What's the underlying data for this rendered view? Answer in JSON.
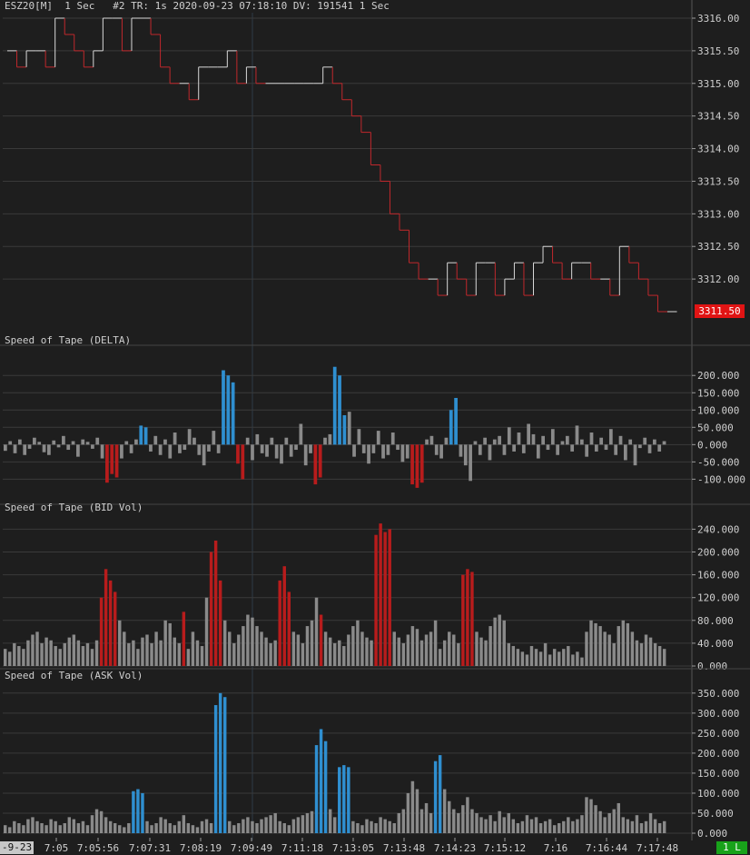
{
  "header": {
    "symbol": "ESZ20[M]",
    "period": "1 Sec",
    "info": "#2 TR: 1s 2020-09-23 07:18:10 DV: 191541 1 Sec"
  },
  "time_axis": {
    "date_label": "-9-23",
    "labels": [
      "7:05",
      "7:05:56",
      "7:07:31",
      "7:08:19",
      "7:09:49",
      "7:11:18",
      "7:13:05",
      "7:13:48",
      "7:14:23",
      "7:15:12",
      "7:16",
      "7:16:44",
      "7:17:48"
    ],
    "live_label": "1 L"
  },
  "colors": {
    "down": "#c0282c",
    "up": "#d8d8d8",
    "gray": "#8a8a8a",
    "red": "#b81c1c",
    "blue": "#2f8fd0",
    "bg": "#1e1e1e",
    "grid": "#3a3a3a"
  },
  "chart_data": [
    {
      "type": "line",
      "name": "price",
      "ylim": [
        3311.5,
        3316.0
      ],
      "y_ticks": [
        "3316.00",
        "3315.50",
        "3315.00",
        "3314.50",
        "3314.00",
        "3313.50",
        "3313.00",
        "3312.50",
        "3312.00"
      ],
      "last_price_label": "3311.50",
      "values": [
        3315.5,
        3315.25,
        3315.5,
        3315.5,
        3315.25,
        3316.0,
        3315.75,
        3315.5,
        3315.25,
        3315.5,
        3316.0,
        3316.0,
        3315.5,
        3316.0,
        3316.0,
        3315.75,
        3315.25,
        3315.0,
        3315.0,
        3314.75,
        3315.25,
        3315.25,
        3315.25,
        3315.5,
        3315.0,
        3315.25,
        3315.0,
        3315.0,
        3315.0,
        3315.0,
        3315.0,
        3315.0,
        3315.0,
        3315.25,
        3315.0,
        3314.75,
        3314.5,
        3314.25,
        3313.75,
        3313.5,
        3313.0,
        3312.75,
        3312.25,
        3312.0,
        3312.0,
        3311.75,
        3312.25,
        3312.0,
        3311.75,
        3312.25,
        3312.25,
        3311.75,
        3312.0,
        3312.25,
        3311.75,
        3312.25,
        3312.5,
        3312.25,
        3312.0,
        3312.25,
        3312.25,
        3312.0,
        3312.0,
        3311.75,
        3312.5,
        3312.25,
        3312.0,
        3311.75,
        3311.5,
        3311.5
      ]
    },
    {
      "type": "bar",
      "name": "Speed of Tape (DELTA)",
      "ylim": [
        -120,
        240
      ],
      "y_ticks": [
        "200.000",
        "150.000",
        "100.000",
        "50.000",
        "0.000",
        "-50.000",
        "-100.000"
      ],
      "tick_values": [
        200,
        150,
        100,
        50,
        0,
        -50,
        -100
      ],
      "values": [
        -18,
        10,
        -25,
        15,
        -30,
        -12,
        20,
        8,
        -22,
        -30,
        12,
        -8,
        25,
        -15,
        10,
        -35,
        15,
        8,
        -12,
        20,
        -40,
        -110,
        -85,
        -95,
        -40,
        10,
        -25,
        15,
        55,
        50,
        -20,
        25,
        -30,
        15,
        -40,
        35,
        -25,
        -15,
        45,
        20,
        -30,
        -60,
        -20,
        40,
        -25,
        215,
        200,
        180,
        -55,
        -100,
        20,
        -45,
        30,
        -25,
        -35,
        20,
        -40,
        -55,
        20,
        -35,
        -15,
        60,
        -60,
        -25,
        -115,
        -95,
        20,
        30,
        225,
        200,
        85,
        95,
        -35,
        45,
        -25,
        -55,
        -25,
        40,
        -40,
        -30,
        35,
        -15,
        -50,
        -40,
        -115,
        -125,
        -110,
        15,
        25,
        -30,
        -40,
        20,
        100,
        135,
        -35,
        -60,
        -105,
        10,
        -30,
        20,
        -45,
        15,
        25,
        -30,
        50,
        -20,
        35,
        -25,
        60,
        30,
        -40,
        25,
        -15,
        45,
        -30,
        10,
        25,
        -20,
        55,
        15,
        -35,
        35,
        -20,
        20,
        -15,
        45,
        -30,
        25,
        -45,
        15,
        -60,
        -10,
        20,
        -25,
        15,
        -20,
        10
      ],
      "red_indices": [
        21,
        22,
        23,
        48,
        49,
        64,
        65,
        84,
        85,
        86
      ],
      "blue_indices": [
        28,
        29,
        45,
        46,
        47,
        68,
        69,
        70,
        92,
        93
      ]
    },
    {
      "type": "bar",
      "name": "Speed of Tape (BID Vol)",
      "ylim": [
        0,
        255
      ],
      "y_ticks": [
        "240.000",
        "200.000",
        "160.000",
        "120.000",
        "80.000",
        "40.000",
        "0.000"
      ],
      "tick_values": [
        240,
        200,
        160,
        120,
        80,
        40,
        0
      ],
      "values": [
        30,
        25,
        40,
        35,
        30,
        45,
        55,
        60,
        40,
        50,
        45,
        35,
        30,
        40,
        50,
        55,
        45,
        35,
        40,
        30,
        45,
        120,
        170,
        150,
        130,
        80,
        60,
        40,
        45,
        30,
        50,
        55,
        40,
        60,
        45,
        80,
        75,
        50,
        40,
        95,
        30,
        60,
        45,
        35,
        120,
        200,
        220,
        150,
        80,
        60,
        40,
        55,
        70,
        90,
        85,
        70,
        60,
        50,
        40,
        45,
        150,
        175,
        130,
        60,
        55,
        40,
        70,
        80,
        120,
        90,
        60,
        50,
        40,
        45,
        35,
        55,
        70,
        80,
        60,
        50,
        45,
        230,
        250,
        235,
        240,
        60,
        50,
        40,
        55,
        70,
        65,
        45,
        55,
        60,
        80,
        30,
        45,
        60,
        55,
        40,
        160,
        170,
        165,
        60,
        50,
        45,
        70,
        85,
        90,
        80,
        40,
        35,
        30,
        25,
        20,
        35,
        30,
        25,
        40,
        20,
        30,
        25,
        30,
        35,
        20,
        25,
        15,
        60,
        80,
        75,
        70,
        60,
        55,
        40,
        70,
        80,
        75,
        60,
        45,
        40,
        55,
        50,
        40,
        35,
        30
      ],
      "red_indices": [
        21,
        22,
        23,
        24,
        39,
        45,
        46,
        47,
        60,
        61,
        62,
        69,
        81,
        82,
        83,
        84,
        100,
        101,
        102
      ]
    },
    {
      "type": "bar",
      "name": "Speed of Tape (ASK Vol)",
      "ylim": [
        0,
        370
      ],
      "y_ticks": [
        "350.000",
        "300.000",
        "250.000",
        "200.000",
        "150.000",
        "100.000",
        "50.000",
        "0.000"
      ],
      "tick_values": [
        350,
        300,
        250,
        200,
        150,
        100,
        50,
        0
      ],
      "values": [
        20,
        15,
        30,
        25,
        20,
        35,
        40,
        30,
        25,
        20,
        35,
        30,
        20,
        25,
        40,
        35,
        25,
        30,
        20,
        45,
        60,
        55,
        40,
        30,
        25,
        20,
        15,
        25,
        105,
        110,
        100,
        30,
        20,
        25,
        40,
        35,
        25,
        20,
        30,
        45,
        25,
        20,
        15,
        30,
        35,
        25,
        320,
        350,
        340,
        30,
        20,
        25,
        35,
        40,
        30,
        25,
        35,
        40,
        45,
        50,
        30,
        25,
        20,
        35,
        40,
        45,
        50,
        55,
        220,
        260,
        230,
        60,
        40,
        165,
        170,
        165,
        30,
        25,
        20,
        35,
        30,
        25,
        40,
        35,
        30,
        25,
        50,
        60,
        100,
        130,
        110,
        60,
        75,
        50,
        180,
        195,
        110,
        80,
        60,
        50,
        70,
        90,
        60,
        50,
        40,
        35,
        45,
        30,
        55,
        40,
        50,
        35,
        25,
        30,
        45,
        35,
        40,
        25,
        30,
        35,
        20,
        25,
        30,
        40,
        30,
        35,
        45,
        90,
        85,
        70,
        55,
        40,
        50,
        60,
        75,
        40,
        35,
        30,
        45,
        25,
        30,
        50,
        35,
        25,
        30
      ],
      "blue_indices": [
        28,
        29,
        30,
        46,
        47,
        48,
        68,
        69,
        70,
        73,
        74,
        75,
        94,
        95
      ]
    }
  ]
}
